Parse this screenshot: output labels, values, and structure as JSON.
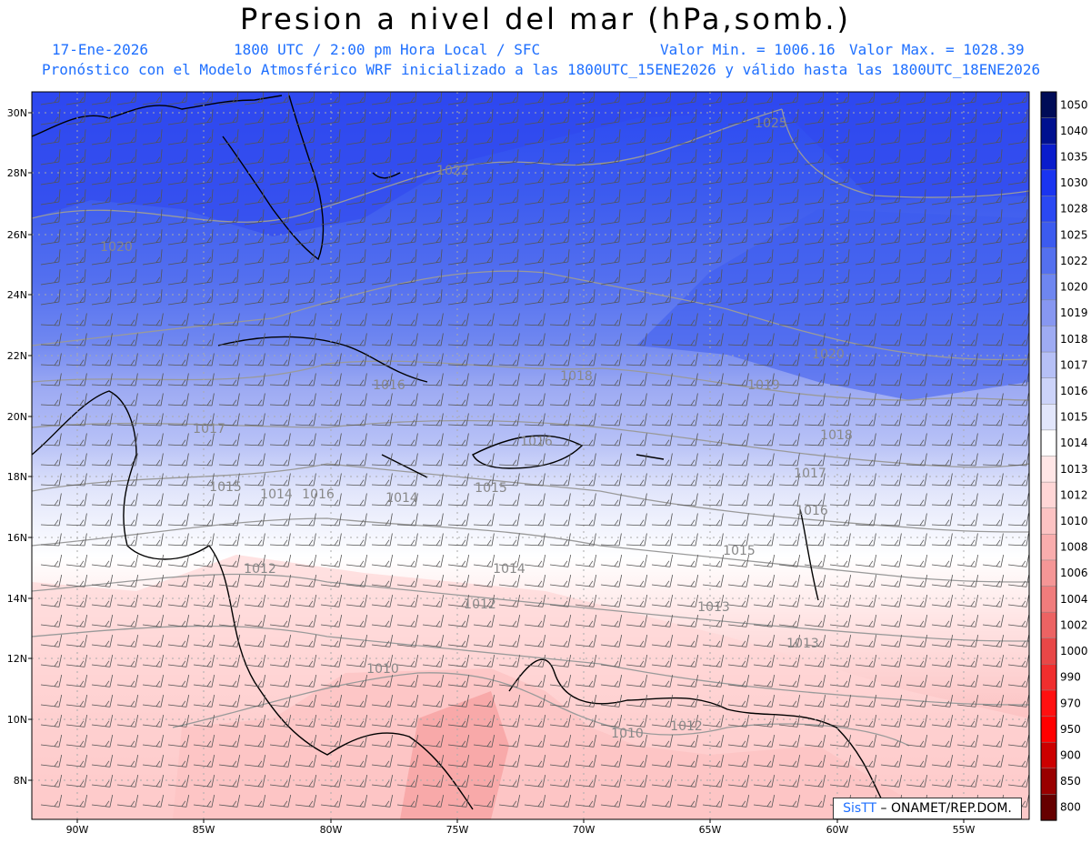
{
  "header": {
    "title": "Presion a nivel del mar (hPa,somb.)",
    "date": "17-Ene-2026",
    "time": "1800 UTC / 2:00 pm Hora Local / SFC",
    "min_label": "Valor Min. = 1006.16",
    "max_label": "Valor Max. = 1028.39",
    "model_line": "Pronóstico con el Modelo Atmosférico WRF inicializado a las 1800UTC_15ENE2026 y válido hasta las  1800UTC_18ENE2026"
  },
  "axes": {
    "lat_ticks": [
      "30N",
      "28N",
      "26N",
      "24N",
      "22N",
      "20N",
      "18N",
      "16N",
      "14N",
      "12N",
      "10N",
      "8N"
    ],
    "lon_ticks": [
      "90W",
      "85W",
      "80W",
      "75W",
      "70W",
      "65W",
      "60W",
      "55W"
    ]
  },
  "colorbar": {
    "levels": [
      "1050",
      "1040",
      "1035",
      "1030",
      "1028",
      "1025",
      "1022",
      "1020",
      "1019",
      "1018",
      "1017",
      "1016",
      "1015",
      "1014",
      "1013",
      "1012",
      "1010",
      "1008",
      "1006",
      "1004",
      "1002",
      "1000",
      "990",
      "970",
      "950",
      "900",
      "850",
      "800"
    ],
    "colors": [
      "#000c57",
      "#00108f",
      "#0a1ccc",
      "#1a34f0",
      "#2a48f2",
      "#3c5bef",
      "#5470ef",
      "#6e86f0",
      "#8797f1",
      "#9eabf3",
      "#b6c0f6",
      "#ccd3f9",
      "#e2e6fb",
      "#ffffff",
      "#ffe6e6",
      "#ffd6d6",
      "#fcc3c3",
      "#f9adad",
      "#f59696",
      "#f07c7c",
      "#ec6363",
      "#e84747",
      "#f02e2e",
      "#ff1010",
      "#ff0000",
      "#cc0000",
      "#990000",
      "#660000"
    ]
  },
  "isobar_labels": [
    "1025",
    "1022",
    "1020",
    "1020",
    "1019",
    "1018",
    "1018",
    "1017",
    "1017",
    "1016",
    "1016",
    "1016",
    "1016",
    "1015",
    "1015",
    "1015",
    "1014",
    "1014",
    "1014",
    "1013",
    "1013",
    "1012",
    "1012",
    "1010",
    "1010",
    "1012"
  ],
  "credit": {
    "sistema": "SisTT",
    "org": " – ONAMET/REP.DOM."
  }
}
